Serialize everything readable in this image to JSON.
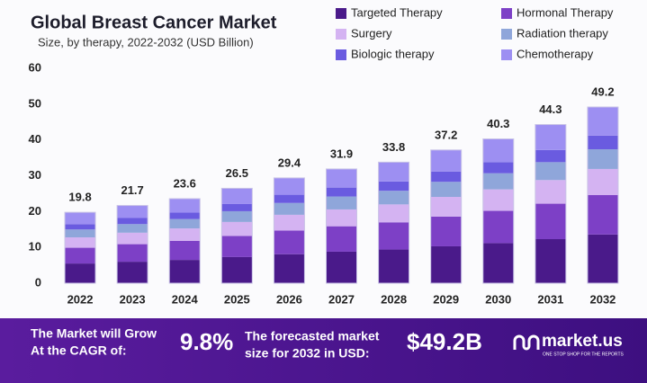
{
  "chart_data": {
    "type": "stacked-bar",
    "title": "Global Breast Cancer Market",
    "subtitle": "Size, by therapy, 2022-2032 (USD Billion)",
    "categories": [
      "2022",
      "2023",
      "2024",
      "2025",
      "2026",
      "2027",
      "2028",
      "2029",
      "2030",
      "2031",
      "2032"
    ],
    "series": [
      {
        "name": "Targeted Therapy",
        "color": "#4a1a8a",
        "values": [
          5.5,
          6.0,
          6.5,
          7.3,
          8.1,
          8.8,
          9.4,
          10.3,
          11.2,
          12.3,
          13.6
        ]
      },
      {
        "name": "Hormonal Therapy",
        "color": "#7d40c6",
        "values": [
          4.4,
          4.9,
          5.3,
          5.9,
          6.6,
          7.1,
          7.6,
          8.3,
          9.0,
          9.9,
          11.0
        ]
      },
      {
        "name": "Surgery",
        "color": "#d4b3f2",
        "values": [
          2.9,
          3.2,
          3.5,
          3.9,
          4.4,
          4.7,
          5.0,
          5.5,
          6.0,
          6.6,
          7.3
        ]
      },
      {
        "name": "Radiation therapy",
        "color": "#8fa6da",
        "values": [
          2.2,
          2.4,
          2.6,
          3.0,
          3.3,
          3.6,
          3.8,
          4.2,
          4.5,
          5.0,
          5.5
        ]
      },
      {
        "name": "Biologic therapy",
        "color": "#6a5be0",
        "values": [
          1.5,
          1.7,
          1.8,
          2.0,
          2.3,
          2.5,
          2.6,
          2.9,
          3.1,
          3.4,
          3.8
        ]
      },
      {
        "name": "Chemotherapy",
        "color": "#9d8ff2",
        "values": [
          3.3,
          3.5,
          3.9,
          4.4,
          4.7,
          5.2,
          5.4,
          6.0,
          6.5,
          7.1,
          8.0
        ]
      }
    ],
    "bar_totals": [
      19.8,
      21.7,
      23.6,
      26.5,
      29.4,
      31.9,
      33.8,
      37.2,
      40.3,
      44.3,
      49.2
    ],
    "ylim": [
      0,
      60
    ],
    "yticks": [
      0,
      10,
      20,
      30,
      40,
      50,
      60
    ],
    "grid": false,
    "legend": "top-right"
  },
  "footer": {
    "cagr_text": [
      "The Market will Grow",
      "At the CAGR of:"
    ],
    "cagr_value": "9.8%",
    "forecast_text": [
      "The forecasted market",
      "size for 2032 in USD:"
    ],
    "forecast_value": "$49.2B",
    "brand": "market.us",
    "tagline": "ONE STOP SHOP FOR THE REPORTS"
  }
}
